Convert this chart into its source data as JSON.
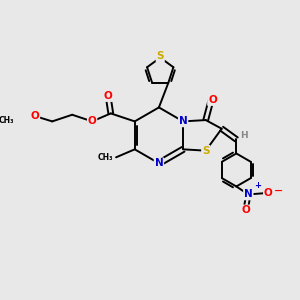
{
  "bg_color": "#e8e8e8",
  "atom_colors": {
    "C": "#000000",
    "N": "#0000cc",
    "O": "#ff0000",
    "S": "#ccaa00",
    "H": "#888888"
  },
  "bond_color": "#000000",
  "bond_width": 1.4,
  "figsize": [
    3.0,
    3.0
  ],
  "dpi": 100
}
